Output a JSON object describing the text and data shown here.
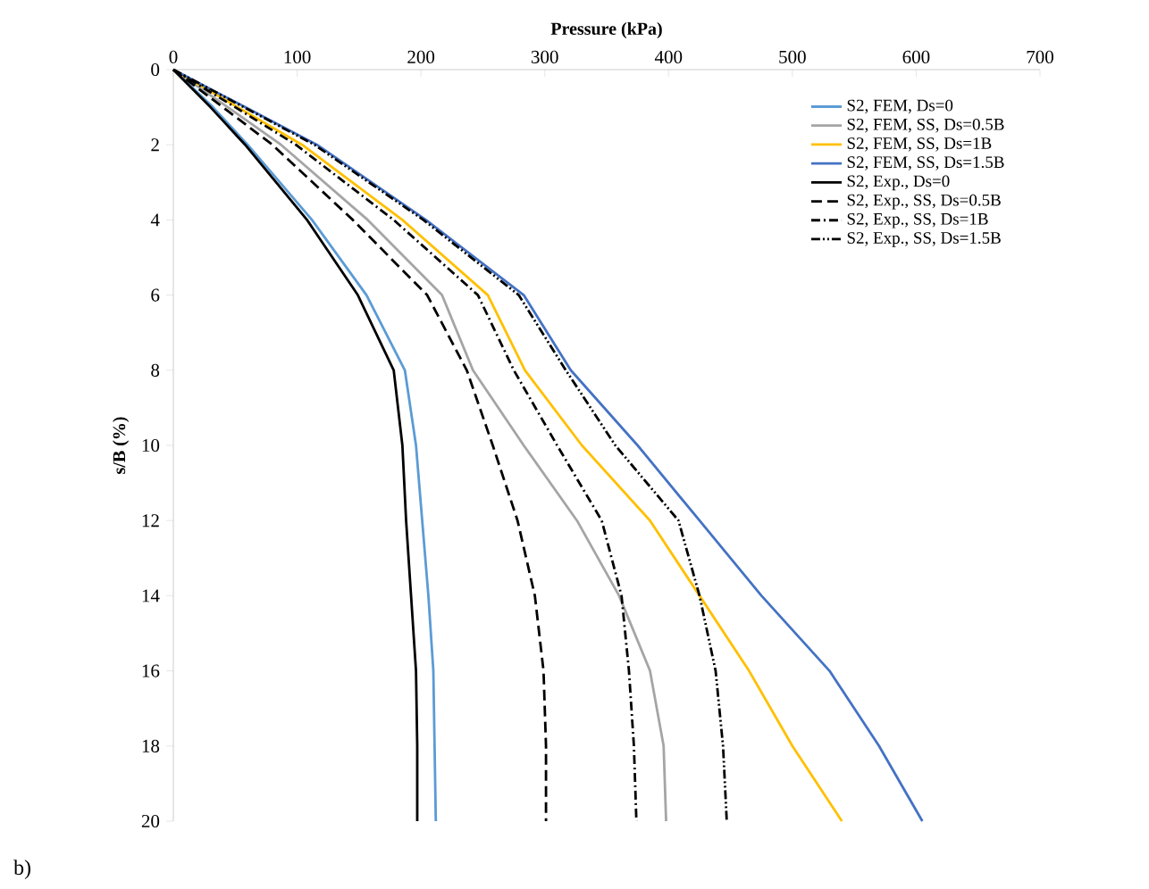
{
  "chart_data": {
    "type": "line",
    "xlabel": "Pressure (kPa)",
    "ylabel": "s/B (%)",
    "xlim": [
      0,
      700
    ],
    "xticks": [
      0,
      100,
      200,
      300,
      400,
      500,
      600,
      700
    ],
    "ylim": [
      20,
      0
    ],
    "yticks": [
      0,
      2,
      4,
      6,
      8,
      10,
      12,
      14,
      16,
      18,
      20
    ],
    "grid": false,
    "legend": "top right",
    "marker": "none",
    "annotations": [
      "b)"
    ],
    "series": [
      {
        "name": "S2, FEM, Ds=0",
        "color": "#5b9bd5",
        "line_style": "solid",
        "x": [
          0,
          32,
          60,
          112,
          156,
          187,
          196,
          201,
          206,
          210,
          211,
          212
        ],
        "values": [
          0,
          1,
          2,
          4,
          6,
          8,
          10,
          12,
          14,
          16,
          18,
          20
        ]
      },
      {
        "name": "S2, FEM, SS, Ds=0.5B",
        "color": "#a5a5a5",
        "line_style": "solid",
        "x": [
          0,
          44,
          87,
          157,
          217,
          242,
          283,
          326,
          360,
          385,
          396,
          398
        ],
        "values": [
          0,
          1,
          2,
          4,
          6,
          8,
          10,
          12,
          14,
          16,
          18,
          20
        ]
      },
      {
        "name": "S2, FEM, SS, Ds=1B",
        "color": "#ffc000",
        "line_style": "solid",
        "x": [
          0,
          52,
          104,
          185,
          254,
          284,
          330,
          385,
          425,
          465,
          500,
          540
        ],
        "values": [
          0,
          1,
          2,
          4,
          6,
          8,
          10,
          12,
          14,
          16,
          18,
          20
        ]
      },
      {
        "name": "S2, FEM, SS, Ds=1.5B",
        "color": "#4472c4",
        "line_style": "solid",
        "x": [
          0,
          58,
          116,
          204,
          283,
          321,
          375,
          425,
          475,
          530,
          570,
          605
        ],
        "values": [
          0,
          1,
          2,
          4,
          6,
          8,
          10,
          12,
          14,
          16,
          18,
          20
        ]
      },
      {
        "name": "S2, Exp., Ds=0",
        "color": "#000000",
        "line_style": "solid",
        "x": [
          0,
          30,
          58,
          108,
          149,
          178,
          185,
          188,
          192,
          196,
          197,
          197
        ],
        "values": [
          0,
          1,
          2,
          4,
          6,
          8,
          10,
          12,
          14,
          16,
          18,
          20
        ]
      },
      {
        "name": "S2, Exp., SS, Ds=0.5B",
        "color": "#000000",
        "line_style": "dashed",
        "x": [
          0,
          40,
          80,
          145,
          205,
          237,
          258,
          278,
          292,
          299,
          301,
          301
        ],
        "values": [
          0,
          1,
          2,
          4,
          6,
          8,
          10,
          12,
          14,
          16,
          18,
          20
        ]
      },
      {
        "name": "S2, Exp., SS, Ds=1B",
        "color": "#000000",
        "line_style": "dashdot",
        "x": [
          0,
          50,
          99,
          178,
          246,
          275,
          310,
          346,
          362,
          368,
          372,
          374
        ],
        "values": [
          0,
          1,
          2,
          4,
          6,
          8,
          10,
          12,
          14,
          16,
          18,
          20
        ]
      },
      {
        "name": "S2, Exp., SS, Ds=1.5B",
        "color": "#000000",
        "line_style": "dashdotdot",
        "x": [
          0,
          57,
          114,
          202,
          279,
          317,
          357,
          408,
          425,
          438,
          444,
          447
        ],
        "values": [
          0,
          1,
          2,
          4,
          6,
          8,
          10,
          12,
          14,
          16,
          18,
          20
        ]
      }
    ]
  }
}
